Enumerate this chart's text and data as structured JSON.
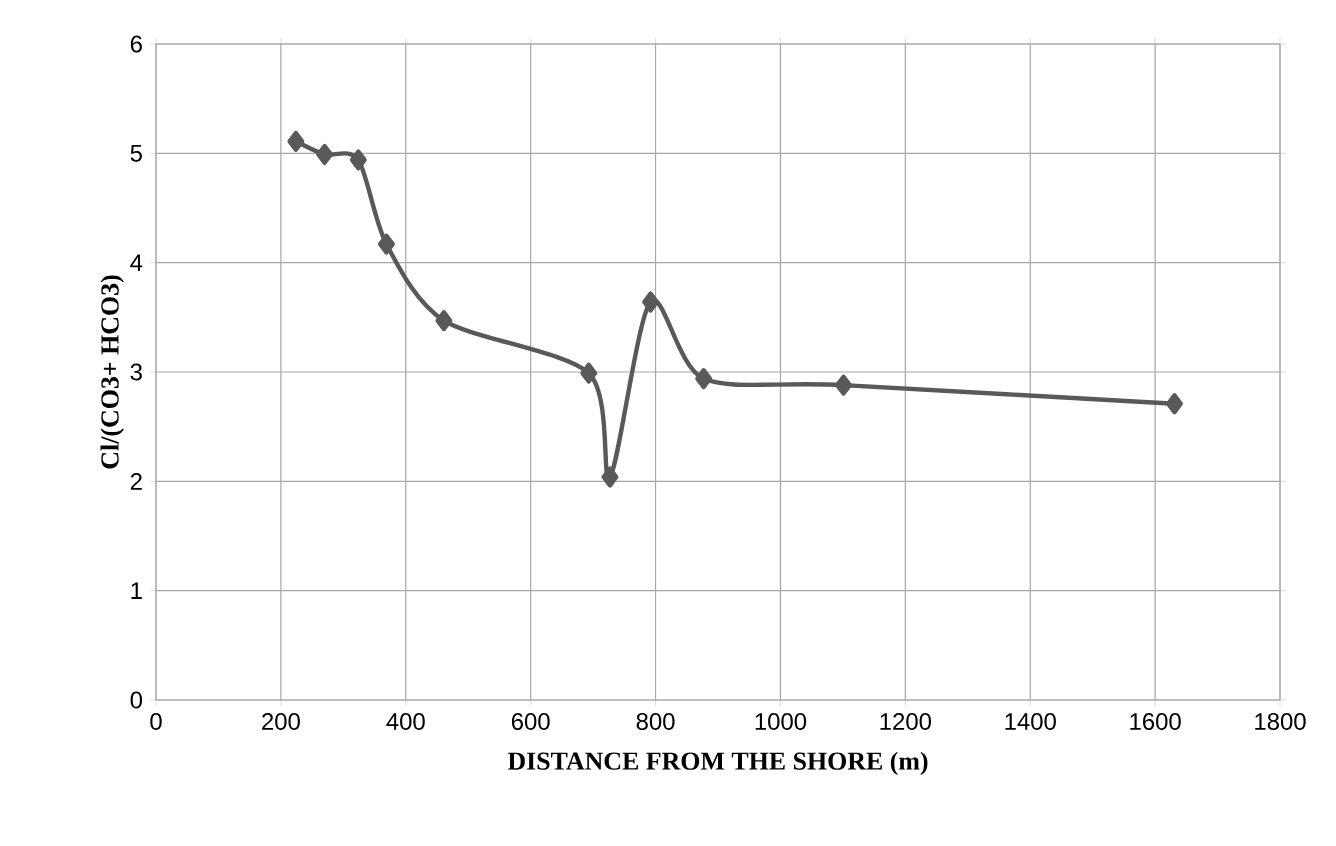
{
  "chart_data": {
    "type": "line",
    "xlabel": "DISTANCE FROM THE SHORE (m)",
    "ylabel": "Cl/(CO3+ HCO3)",
    "x": [
      224,
      270,
      324,
      369,
      461,
      693,
      727,
      792,
      877,
      1101,
      1631
    ],
    "series": [
      {
        "color": "#595959",
        "values": [
          5.11,
          4.99,
          4.94,
          4.17,
          3.47,
          2.99,
          2.04,
          3.64,
          2.94,
          2.88,
          2.71
        ]
      }
    ],
    "xlim": [
      0,
      1800
    ],
    "xticks": [
      0,
      200,
      400,
      600,
      800,
      1000,
      1200,
      1400,
      1600,
      1800
    ],
    "ylim": [
      0,
      6
    ],
    "yticks": [
      0,
      1,
      2,
      3,
      4,
      5,
      6
    ],
    "grid": true,
    "marker": "diamond",
    "line_style": "solid"
  }
}
